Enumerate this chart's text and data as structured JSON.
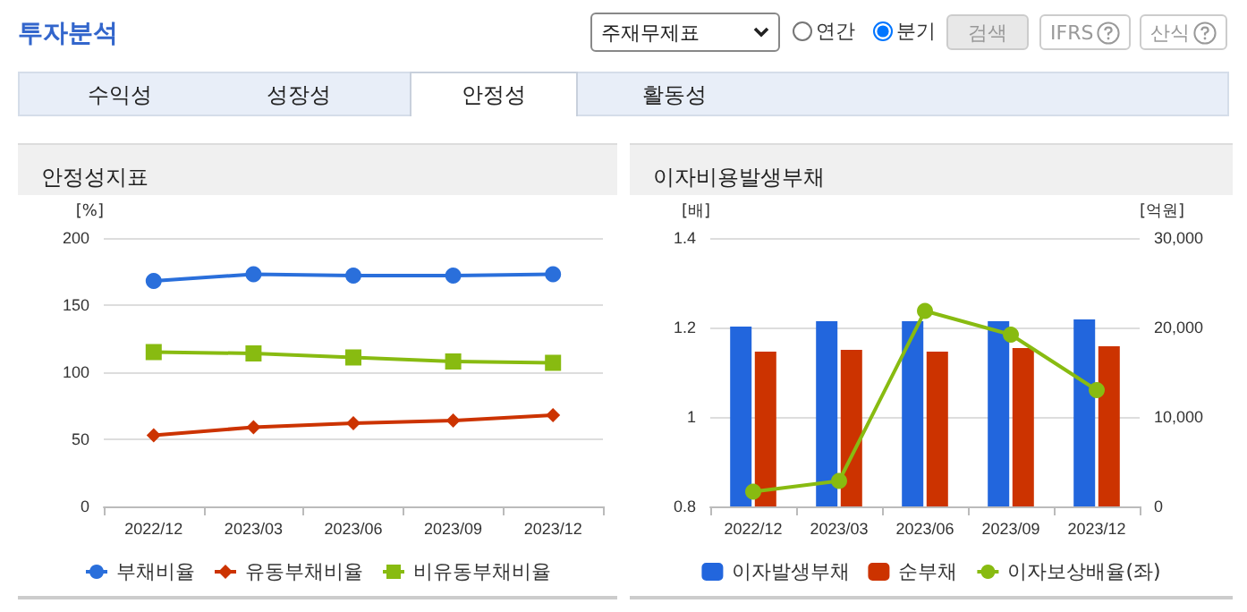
{
  "chart_data": [
    {
      "type": "line",
      "title": "안정성지표",
      "ylabel": "[%]",
      "annotations": [
        "투자분석",
        "주재무제표",
        "연간",
        "분기",
        "검색",
        "IFRS",
        "산식",
        "수익성",
        "성장성",
        "안정성",
        "활동성"
      ],
      "categories": [
        "2022/12",
        "2023/03",
        "2023/06",
        "2023/09",
        "2023/12"
      ],
      "series": [
        {
          "name": "부채비율",
          "color": "#2a6fdb",
          "marker": "circle",
          "values": [
            168,
            173,
            172,
            172,
            173
          ]
        },
        {
          "name": "유동부채비율",
          "color": "#cc3300",
          "marker": "diamond",
          "values": [
            53,
            59,
            62,
            64,
            68
          ]
        },
        {
          "name": "비유동부채비율",
          "color": "#88bb11",
          "marker": "square",
          "values": [
            115,
            114,
            111,
            108,
            107
          ]
        }
      ],
      "ylim": [
        0,
        200
      ],
      "yticks": [
        0,
        50,
        100,
        150,
        200
      ],
      "grid": "y",
      "legend": "bottom"
    },
    {
      "type": "bar",
      "title": "이자비용발생부채",
      "ylabel": "[배]",
      "y2label": "[억원]",
      "categories": [
        "2022/12",
        "2023/03",
        "2023/06",
        "2023/09",
        "2023/12"
      ],
      "series": [
        {
          "name": "이자발생부채",
          "color": "#2266dd",
          "axis": "y2",
          "values": [
            20100,
            20700,
            20700,
            20700,
            20900
          ]
        },
        {
          "name": "순부채",
          "color": "#cc3300",
          "axis": "y2",
          "values": [
            17300,
            17500,
            17300,
            17700,
            17900
          ]
        },
        {
          "name": "이자보상배율(좌)",
          "type": "line",
          "color": "#88bb11",
          "marker": "circle",
          "values": [
            0.833,
            0.857,
            1.237,
            1.184,
            1.06
          ]
        }
      ],
      "ylim": [
        0.8,
        1.4
      ],
      "yticks": [
        {
          "value": 0.8,
          "label": "0.8"
        },
        1,
        {
          "value": 1.2,
          "label": "1.2"
        },
        {
          "value": 1.4,
          "label": "1.4"
        }
      ],
      "y2lim": [
        0,
        30000
      ],
      "y2ticks": [
        0,
        {
          "value": 10000,
          "label": "10,000"
        },
        {
          "value": 20000,
          "label": "20,000"
        },
        {
          "value": 30000,
          "label": "30,000"
        }
      ],
      "grid": "y",
      "legend": "bottom"
    }
  ]
}
